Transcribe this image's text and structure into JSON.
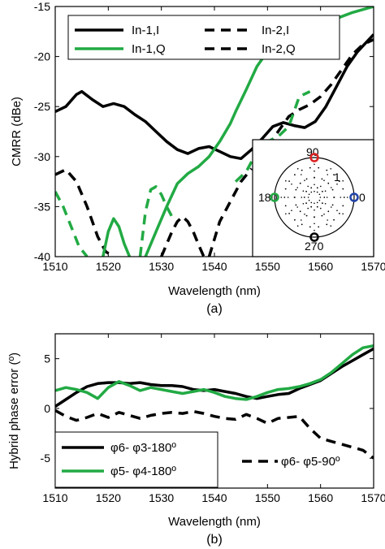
{
  "chart_data": [
    {
      "type": "line",
      "subplot_label": "(a)",
      "xlabel": "Wavelength (nm)",
      "ylabel": "CMRR (dBe)",
      "xlim": [
        1510,
        1570
      ],
      "ylim": [
        -40,
        -15
      ],
      "xticks": [
        1510,
        1520,
        1530,
        1540,
        1550,
        1560,
        1570
      ],
      "yticks": [
        -15,
        -20,
        -25,
        -30,
        -35,
        -40
      ],
      "grid": false,
      "legend_position": "top",
      "series": [
        {
          "name": "In-1,I",
          "color": "#000000",
          "dash": "solid",
          "x": [
            1510,
            1512,
            1514,
            1515,
            1517,
            1519,
            1521,
            1523,
            1525,
            1527,
            1529,
            1531,
            1533,
            1535,
            1537,
            1539,
            1541,
            1543,
            1545,
            1547,
            1549,
            1551,
            1553,
            1555,
            1557,
            1559,
            1561,
            1563,
            1565,
            1567,
            1570
          ],
          "y": [
            -25.5,
            -25.0,
            -23.8,
            -23.5,
            -24.3,
            -25.0,
            -24.7,
            -25.0,
            -25.8,
            -26.5,
            -27.5,
            -28.5,
            -29.3,
            -29.7,
            -29.2,
            -29.0,
            -29.5,
            -30.0,
            -30.2,
            -29.3,
            -28.2,
            -27.0,
            -26.6,
            -26.9,
            -27.1,
            -26.5,
            -25.0,
            -23.0,
            -21.0,
            -19.5,
            -17.8
          ]
        },
        {
          "name": "In-1,Q",
          "color": "#22aa44",
          "dash": "solid",
          "x": [
            1527,
            1529,
            1531,
            1533,
            1535,
            1537,
            1539,
            1541,
            1543,
            1544,
            1546,
            1548,
            1550,
            1552,
            1554,
            1556,
            1558,
            1560,
            1562,
            1564,
            1566,
            1568,
            1570
          ],
          "y": [
            -40.0,
            -37.5,
            -35.0,
            -32.7,
            -31.7,
            -31.0,
            -30.0,
            -28.5,
            -26.7,
            -25.5,
            -23.3,
            -21.0,
            -19.5,
            -18.5,
            -18.0,
            -17.6,
            -17.2,
            -16.8,
            -16.4,
            -16.0,
            -15.6,
            -15.3,
            -15.0
          ]
        },
        {
          "name": "In-2,I",
          "color": "#000000",
          "dash": "dashed",
          "x": [
            1510,
            1512,
            1514,
            1516,
            1518,
            1519.5,
            1521
          ],
          "y": [
            -31.8,
            -31.3,
            -32.5,
            -35.0,
            -38.0,
            -39.5,
            -40.0
          ]
        },
        {
          "name": "In-2,Q",
          "color": "#000000",
          "dash": "dashed",
          "x": [
            1548,
            1550,
            1552,
            1554,
            1556,
            1558,
            1560,
            1562,
            1564,
            1566,
            1568,
            1570
          ],
          "y": [
            -30.2,
            -29.0,
            -27.5,
            -26.0,
            -25.3,
            -24.8,
            -24.0,
            -22.8,
            -21.3,
            -19.8,
            -18.8,
            -18.3
          ]
        },
        {
          "name": "",
          "color": "#22aa44",
          "dash": "dashed",
          "x": [
            1510,
            1511.5,
            1513,
            1514.5,
            1516
          ],
          "y": [
            -33.5,
            -35.0,
            -37.0,
            -39.0,
            -40.0
          ]
        },
        {
          "name": "",
          "color": "#22aa44",
          "dash": "solid",
          "x": [
            1519,
            1520,
            1521,
            1522,
            1523,
            1524
          ],
          "y": [
            -40.0,
            -37.5,
            -36.2,
            -37.0,
            -38.7,
            -40.0
          ]
        },
        {
          "name": "",
          "color": "#22aa44",
          "dash": "dashed",
          "x": [
            1526,
            1527,
            1528,
            1529,
            1530,
            1531,
            1532
          ],
          "y": [
            -40.0,
            -35.5,
            -33.3,
            -33.0,
            -33.8,
            -35.0,
            -36.0
          ]
        },
        {
          "name": "",
          "color": "#22aa44",
          "dash": "dashed",
          "x": [
            1544,
            1546,
            1548,
            1550,
            1552,
            1554,
            1555,
            1556,
            1558
          ],
          "y": [
            -32.5,
            -31.5,
            -29.5,
            -28.5,
            -28.0,
            -27.0,
            -25.5,
            -24.0,
            -23.5
          ]
        },
        {
          "name": "",
          "color": "#000000",
          "dash": "dashed",
          "x": [
            1530,
            1532,
            1533,
            1534,
            1535,
            1536,
            1537,
            1538
          ],
          "y": [
            -40.0,
            -37.5,
            -36.5,
            -36.0,
            -36.5,
            -37.5,
            -38.8,
            -40.0
          ]
        },
        {
          "name": "",
          "color": "#000000",
          "dash": "dashed",
          "x": [
            1539,
            1541,
            1543,
            1545,
            1547
          ],
          "y": [
            -40.0,
            -36.5,
            -34.5,
            -32.5,
            -31.2
          ]
        }
      ],
      "inset": {
        "type": "polar",
        "angle_labels": [
          "90",
          "180",
          "0",
          "270"
        ],
        "radius_label": "1",
        "markers": [
          {
            "angle": 90,
            "color": "#dd2222"
          },
          {
            "angle": 180,
            "color": "#22aa44"
          },
          {
            "angle": 0,
            "color": "#2244aa"
          },
          {
            "angle": 270,
            "color": "#000000"
          }
        ]
      }
    },
    {
      "type": "line",
      "subplot_label": "(b)",
      "xlabel": "Wavelength (nm)",
      "ylabel": "Hybrid phase error (º)",
      "xlim": [
        1510,
        1570
      ],
      "ylim": [
        -8,
        7.5
      ],
      "xticks": [
        1510,
        1520,
        1530,
        1540,
        1550,
        1560,
        1570
      ],
      "yticks": [
        5,
        0,
        -5
      ],
      "grid": false,
      "legend_position": "bottom",
      "series": [
        {
          "name": "φ6- φ3-180º",
          "color": "#000000",
          "dash": "solid",
          "x": [
            1510,
            1512,
            1514,
            1516,
            1518,
            1520,
            1522,
            1524,
            1526,
            1528,
            1530,
            1532,
            1534,
            1536,
            1538,
            1540,
            1542,
            1544,
            1546,
            1548,
            1550,
            1552,
            1554,
            1556,
            1558,
            1560,
            1562,
            1564,
            1566,
            1568,
            1570
          ],
          "y": [
            0.2,
            0.9,
            1.6,
            2.2,
            2.5,
            2.6,
            2.6,
            2.5,
            2.6,
            2.4,
            2.3,
            2.3,
            2.2,
            1.9,
            1.8,
            1.9,
            1.7,
            1.5,
            1.2,
            1.0,
            1.2,
            1.4,
            1.5,
            2.0,
            2.4,
            2.8,
            3.5,
            4.2,
            4.8,
            5.4,
            6.0
          ]
        },
        {
          "name": "φ5- φ4-180º",
          "color": "#22aa44",
          "dash": "solid",
          "x": [
            1510,
            1512,
            1514,
            1516,
            1518,
            1520,
            1522,
            1524,
            1526,
            1528,
            1530,
            1532,
            1534,
            1536,
            1538,
            1540,
            1542,
            1544,
            1546,
            1548,
            1550,
            1552,
            1554,
            1556,
            1558,
            1560,
            1562,
            1564,
            1566,
            1568,
            1570
          ],
          "y": [
            1.8,
            2.1,
            1.9,
            1.6,
            1.0,
            2.1,
            2.7,
            2.3,
            1.8,
            2.1,
            1.9,
            1.7,
            1.5,
            1.7,
            1.9,
            1.6,
            1.2,
            1.0,
            0.9,
            1.2,
            1.6,
            1.9,
            2.0,
            2.2,
            2.5,
            2.9,
            3.6,
            4.5,
            5.4,
            6.1,
            6.3
          ]
        },
        {
          "name": "φ6- φ5-90º",
          "color": "#000000",
          "dash": "dashed",
          "x": [
            1510,
            1512,
            1514,
            1516,
            1518,
            1520,
            1522,
            1524,
            1526,
            1528,
            1530,
            1532,
            1534,
            1536,
            1538,
            1540,
            1542,
            1544,
            1546,
            1548,
            1550,
            1552,
            1554,
            1556,
            1558,
            1560,
            1562,
            1564,
            1566,
            1568,
            1570
          ],
          "y": [
            -0.2,
            -0.8,
            -1.2,
            -0.9,
            -0.5,
            -0.9,
            -0.4,
            -0.7,
            -1.0,
            -0.7,
            -0.5,
            -0.4,
            -0.5,
            -0.3,
            -0.5,
            -0.8,
            -1.0,
            -1.1,
            -0.6,
            -1.0,
            -1.5,
            -1.0,
            -0.9,
            -0.8,
            -2.0,
            -3.0,
            -3.3,
            -3.6,
            -3.9,
            -4.2,
            -5.0
          ]
        }
      ]
    }
  ]
}
